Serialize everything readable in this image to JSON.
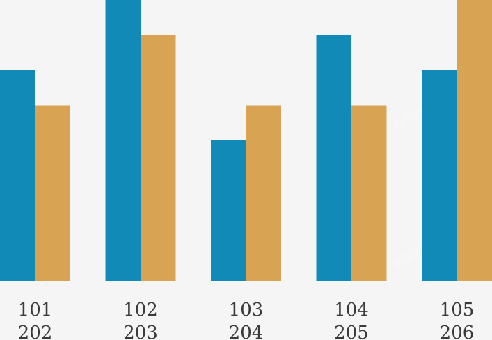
{
  "chart_data": {
    "type": "bar",
    "categories": [
      [
        "101",
        "202"
      ],
      [
        "102",
        "203"
      ],
      [
        "103",
        "204"
      ],
      [
        "104",
        "205"
      ],
      [
        "105",
        "206"
      ]
    ],
    "series": [
      {
        "color": "#118ab8",
        "values": [
          6,
          8,
          4,
          7,
          6
        ]
      },
      {
        "color": "#d8a353",
        "values": [
          5,
          7,
          5,
          5,
          8
        ]
      }
    ],
    "ylim": [
      0,
      8
    ],
    "grid": false,
    "legend": "none",
    "xlabel": "",
    "ylabel": "",
    "title": ""
  },
  "colors": {
    "background": "#f5f5f5",
    "label_text": "#3a3a3a"
  },
  "watermark": "新图网"
}
